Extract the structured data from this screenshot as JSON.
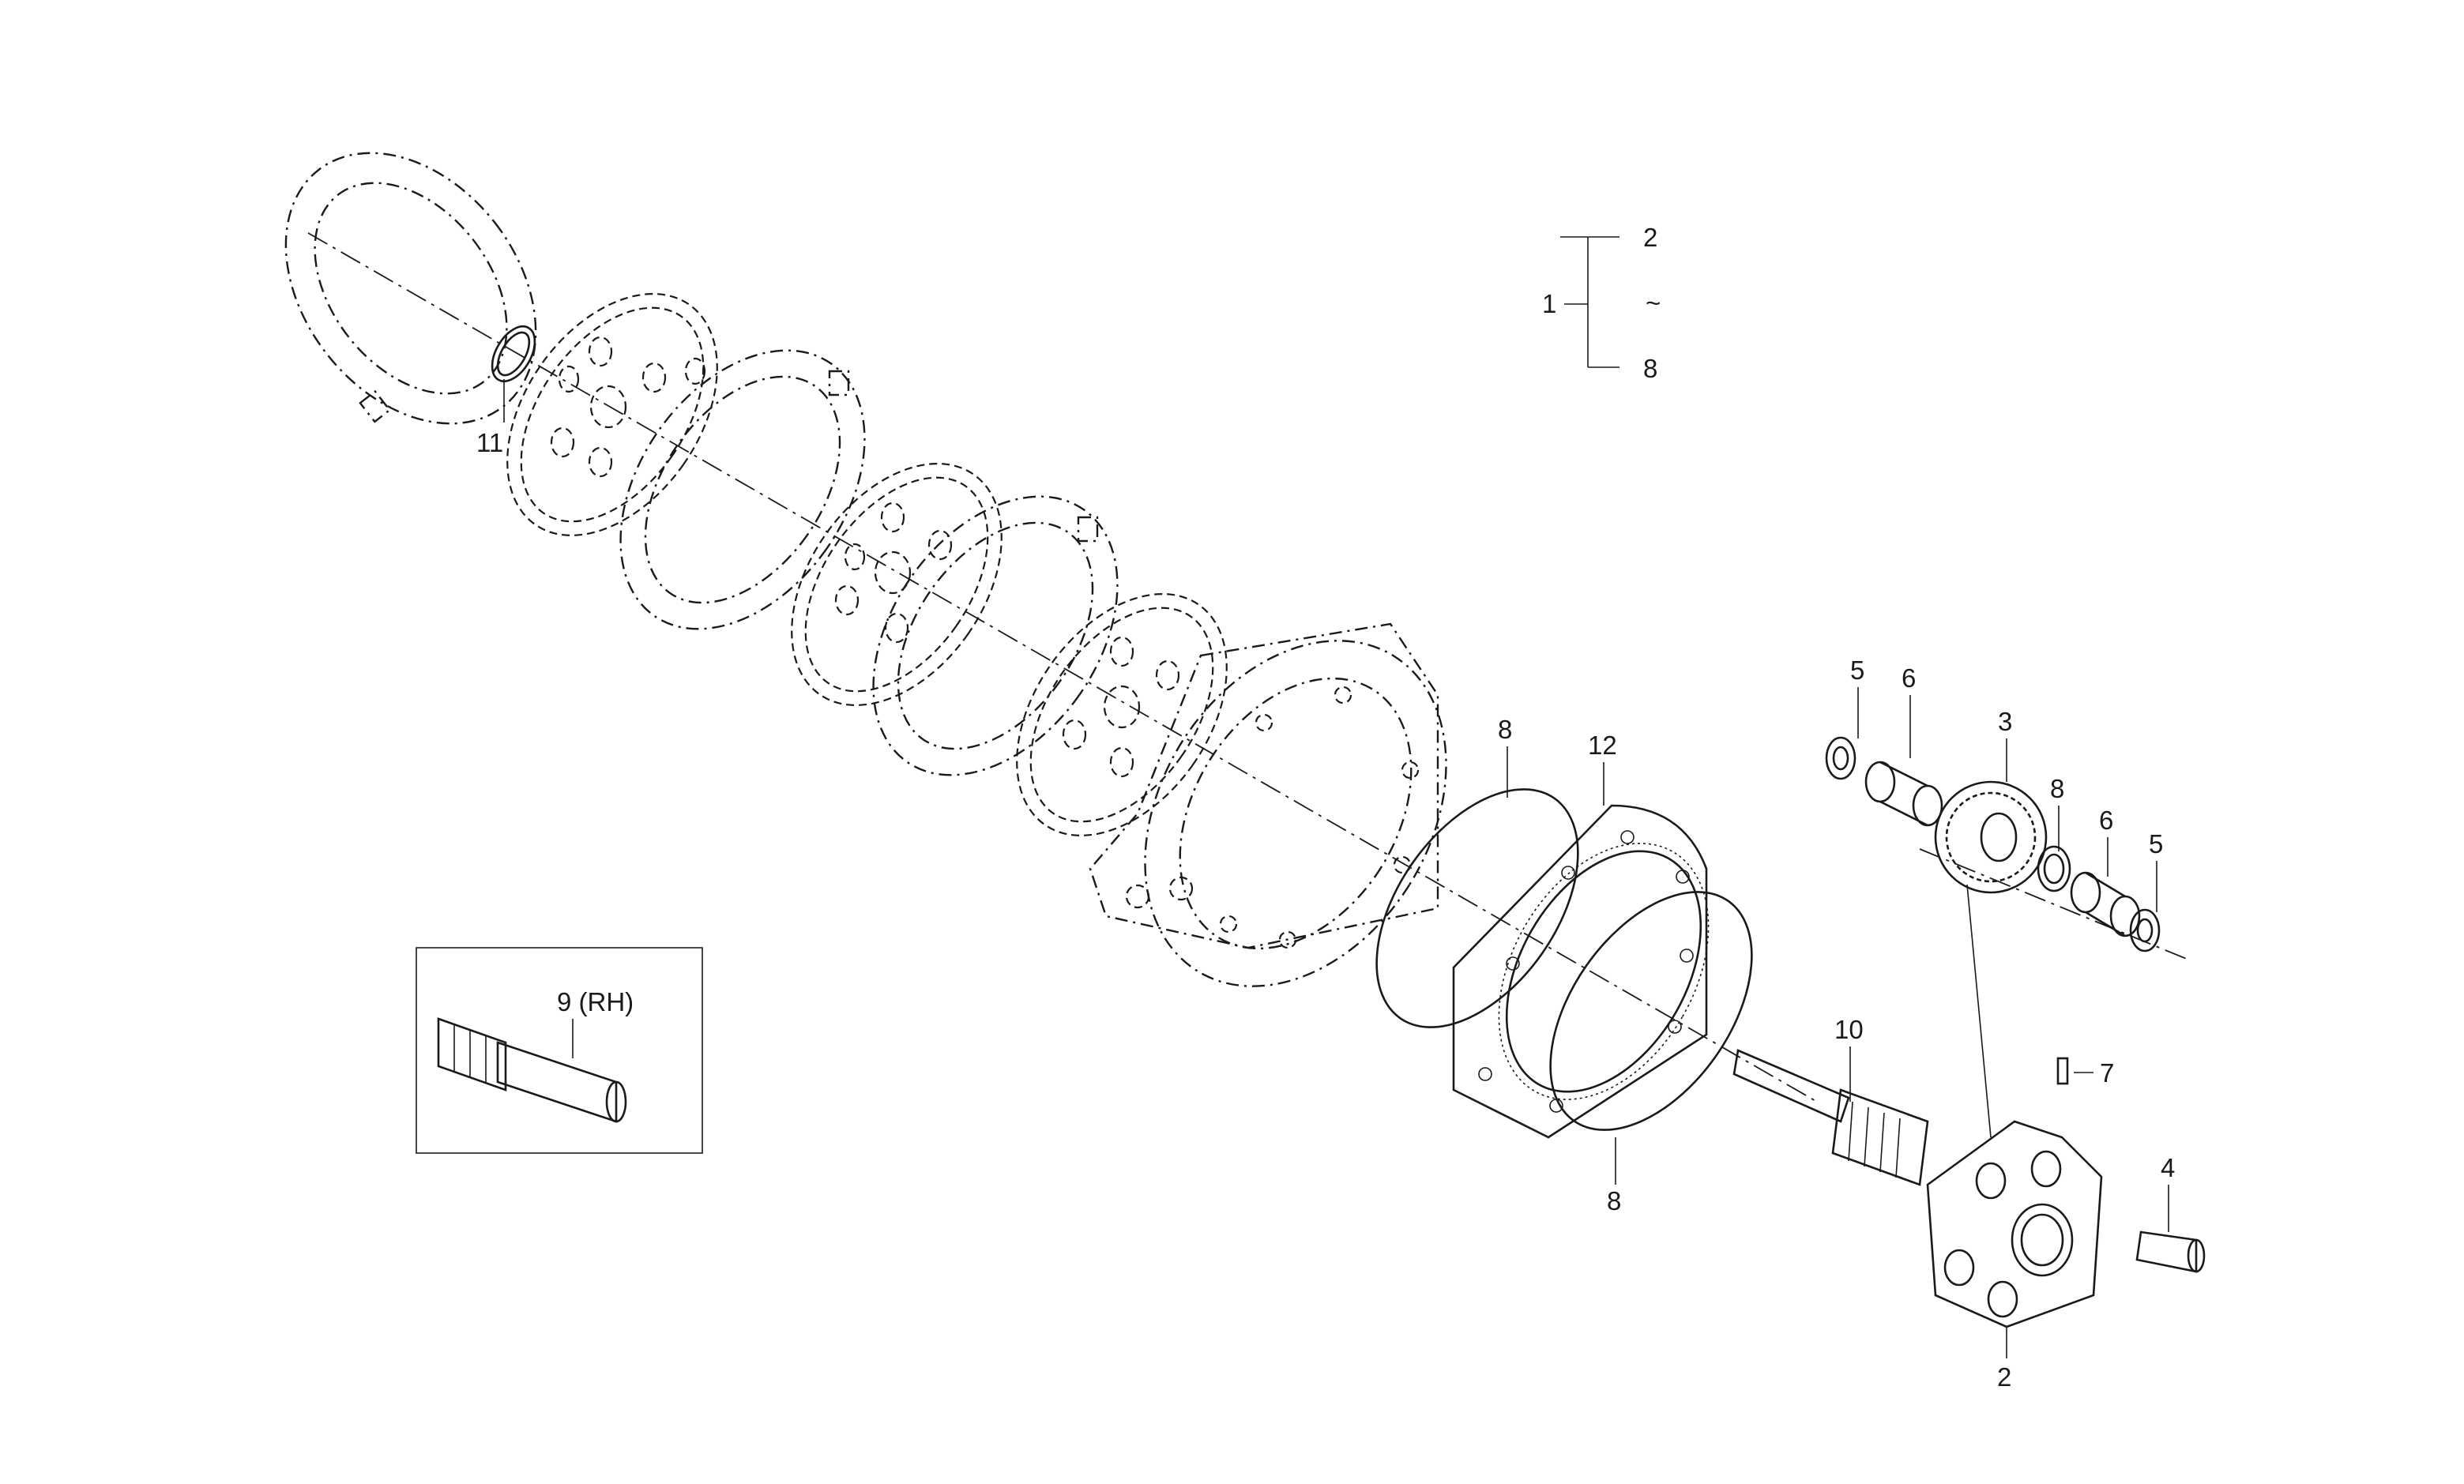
{
  "legend": {
    "assembly": "1",
    "from": "2",
    "range_symbol": "~",
    "to": "8"
  },
  "callouts": {
    "c11": "11",
    "c8_top": "8",
    "c12": "12",
    "c5_left": "5",
    "c6_left": "6",
    "c3": "3",
    "c8_gear": "8",
    "c6_right": "6",
    "c5_right": "5",
    "c10": "10",
    "c7": "7",
    "c4": "4",
    "c2": "2",
    "c8_bottom": "8"
  },
  "inset": {
    "label": "9 (RH)"
  }
}
